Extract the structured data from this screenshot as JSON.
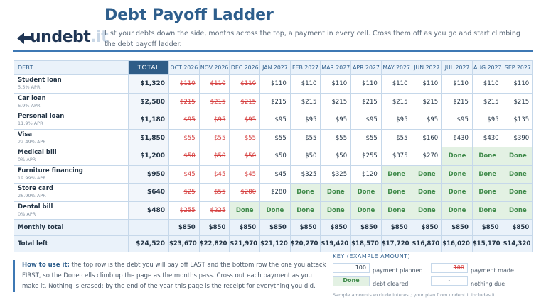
{
  "brand": {
    "logo_main": "undebt",
    "logo_dot": ".it"
  },
  "header": {
    "title": "Debt Payoff Ladder",
    "subtitle": "List your debts down the side, months across the top, a payment in every cell. Cross them off as you go and start climbing the debt payoff ladder."
  },
  "table": {
    "debt_header": "DEBT",
    "total_header": "TOTAL",
    "months": [
      "OCT 2026",
      "NOV 2026",
      "DEC 2026",
      "JAN 2027",
      "FEB 2027",
      "MAR 2027",
      "APR 2027",
      "MAY 2027",
      "JUN 2027",
      "JUL 2027",
      "AUG 2027",
      "SEP 2027"
    ],
    "rows": [
      {
        "name": "Student loan",
        "apr": "5.5% APR",
        "total": "$1,320",
        "cells": [
          {
            "v": "$110",
            "s": "struck"
          },
          {
            "v": "$110",
            "s": "struck"
          },
          {
            "v": "$110",
            "s": "struck"
          },
          {
            "v": "$110",
            "s": "planned"
          },
          {
            "v": "$110",
            "s": "planned"
          },
          {
            "v": "$110",
            "s": "planned"
          },
          {
            "v": "$110",
            "s": "planned"
          },
          {
            "v": "$110",
            "s": "planned"
          },
          {
            "v": "$110",
            "s": "planned"
          },
          {
            "v": "$110",
            "s": "planned"
          },
          {
            "v": "$110",
            "s": "planned"
          },
          {
            "v": "$110",
            "s": "planned"
          }
        ]
      },
      {
        "name": "Car loan",
        "apr": "6.9% APR",
        "total": "$2,580",
        "cells": [
          {
            "v": "$215",
            "s": "struck"
          },
          {
            "v": "$215",
            "s": "struck"
          },
          {
            "v": "$215",
            "s": "struck"
          },
          {
            "v": "$215",
            "s": "planned"
          },
          {
            "v": "$215",
            "s": "planned"
          },
          {
            "v": "$215",
            "s": "planned"
          },
          {
            "v": "$215",
            "s": "planned"
          },
          {
            "v": "$215",
            "s": "planned"
          },
          {
            "v": "$215",
            "s": "planned"
          },
          {
            "v": "$215",
            "s": "planned"
          },
          {
            "v": "$215",
            "s": "planned"
          },
          {
            "v": "$215",
            "s": "planned"
          }
        ]
      },
      {
        "name": "Personal loan",
        "apr": "11.9% APR",
        "total": "$1,180",
        "cells": [
          {
            "v": "$95",
            "s": "struck"
          },
          {
            "v": "$95",
            "s": "struck"
          },
          {
            "v": "$95",
            "s": "struck"
          },
          {
            "v": "$95",
            "s": "planned"
          },
          {
            "v": "$95",
            "s": "planned"
          },
          {
            "v": "$95",
            "s": "planned"
          },
          {
            "v": "$95",
            "s": "planned"
          },
          {
            "v": "$95",
            "s": "planned"
          },
          {
            "v": "$95",
            "s": "planned"
          },
          {
            "v": "$95",
            "s": "planned"
          },
          {
            "v": "$95",
            "s": "planned"
          },
          {
            "v": "$135",
            "s": "planned"
          }
        ]
      },
      {
        "name": "Visa",
        "apr": "22.49% APR",
        "total": "$1,850",
        "cells": [
          {
            "v": "$55",
            "s": "struck"
          },
          {
            "v": "$55",
            "s": "struck"
          },
          {
            "v": "$55",
            "s": "struck"
          },
          {
            "v": "$55",
            "s": "planned"
          },
          {
            "v": "$55",
            "s": "planned"
          },
          {
            "v": "$55",
            "s": "planned"
          },
          {
            "v": "$55",
            "s": "planned"
          },
          {
            "v": "$55",
            "s": "planned"
          },
          {
            "v": "$160",
            "s": "planned"
          },
          {
            "v": "$430",
            "s": "planned"
          },
          {
            "v": "$430",
            "s": "planned"
          },
          {
            "v": "$390",
            "s": "planned"
          }
        ]
      },
      {
        "name": "Medical bill",
        "apr": "0% APR",
        "total": "$1,200",
        "cells": [
          {
            "v": "$50",
            "s": "struck"
          },
          {
            "v": "$50",
            "s": "struck"
          },
          {
            "v": "$50",
            "s": "struck"
          },
          {
            "v": "$50",
            "s": "planned"
          },
          {
            "v": "$50",
            "s": "planned"
          },
          {
            "v": "$50",
            "s": "planned"
          },
          {
            "v": "$255",
            "s": "planned"
          },
          {
            "v": "$375",
            "s": "planned"
          },
          {
            "v": "$270",
            "s": "planned"
          },
          {
            "v": "Done",
            "s": "done"
          },
          {
            "v": "Done",
            "s": "done"
          },
          {
            "v": "Done",
            "s": "done"
          }
        ]
      },
      {
        "name": "Furniture financing",
        "apr": "19.99% APR",
        "total": "$950",
        "cells": [
          {
            "v": "$45",
            "s": "struck"
          },
          {
            "v": "$45",
            "s": "struck"
          },
          {
            "v": "$45",
            "s": "struck"
          },
          {
            "v": "$45",
            "s": "planned"
          },
          {
            "v": "$325",
            "s": "planned"
          },
          {
            "v": "$325",
            "s": "planned"
          },
          {
            "v": "$120",
            "s": "planned"
          },
          {
            "v": "Done",
            "s": "done"
          },
          {
            "v": "Done",
            "s": "done"
          },
          {
            "v": "Done",
            "s": "done"
          },
          {
            "v": "Done",
            "s": "done"
          },
          {
            "v": "Done",
            "s": "done"
          }
        ]
      },
      {
        "name": "Store card",
        "apr": "26.99% APR",
        "total": "$640",
        "cells": [
          {
            "v": "$25",
            "s": "struck"
          },
          {
            "v": "$55",
            "s": "struck"
          },
          {
            "v": "$280",
            "s": "struck"
          },
          {
            "v": "$280",
            "s": "planned"
          },
          {
            "v": "Done",
            "s": "done"
          },
          {
            "v": "Done",
            "s": "done"
          },
          {
            "v": "Done",
            "s": "done"
          },
          {
            "v": "Done",
            "s": "done"
          },
          {
            "v": "Done",
            "s": "done"
          },
          {
            "v": "Done",
            "s": "done"
          },
          {
            "v": "Done",
            "s": "done"
          },
          {
            "v": "Done",
            "s": "done"
          }
        ]
      },
      {
        "name": "Dental bill",
        "apr": "0% APR",
        "total": "$480",
        "cells": [
          {
            "v": "$255",
            "s": "struck"
          },
          {
            "v": "$225",
            "s": "struck"
          },
          {
            "v": "Done",
            "s": "done"
          },
          {
            "v": "Done",
            "s": "done"
          },
          {
            "v": "Done",
            "s": "done"
          },
          {
            "v": "Done",
            "s": "done"
          },
          {
            "v": "Done",
            "s": "done"
          },
          {
            "v": "Done",
            "s": "done"
          },
          {
            "v": "Done",
            "s": "done"
          },
          {
            "v": "Done",
            "s": "done"
          },
          {
            "v": "Done",
            "s": "done"
          },
          {
            "v": "Done",
            "s": "done"
          }
        ]
      }
    ],
    "monthly_total": {
      "label": "Monthly total",
      "total": "",
      "values": [
        "$850",
        "$850",
        "$850",
        "$850",
        "$850",
        "$850",
        "$850",
        "$850",
        "$850",
        "$850",
        "$850",
        "$850"
      ]
    },
    "total_left": {
      "label": "Total left",
      "total": "$24,520",
      "values": [
        "$23,670",
        "$22,820",
        "$21,970",
        "$21,120",
        "$20,270",
        "$19,420",
        "$18,570",
        "$17,720",
        "$16,870",
        "$16,020",
        "$15,170",
        "$14,320"
      ]
    }
  },
  "howto": {
    "lead": "How to use it:",
    "text": " the top row is the debt you will pay off LAST and the bottom row the one you attack FIRST, so the Done cells climb up the page as the months pass. Cross out each payment as you make it. Nothing is erased: by the end of the year this page is the receipt for everything you did."
  },
  "key": {
    "title": "KEY (EXAMPLE AMOUNT)",
    "planned_value": "100",
    "planned_label": "payment planned",
    "made_value": "100",
    "made_label": "payment made",
    "done_value": "Done",
    "done_label": "debt cleared",
    "nothing_value": "-",
    "nothing_label": "nothing due",
    "note": "Sample amounts exclude interest; your plan from undebt.it includes it."
  },
  "colors": {
    "accent": "#2e5e8c",
    "rule": "#3d78b4",
    "struck": "#d64242",
    "done_bg": "#e3f1e3",
    "done_text": "#3f8a4a"
  }
}
